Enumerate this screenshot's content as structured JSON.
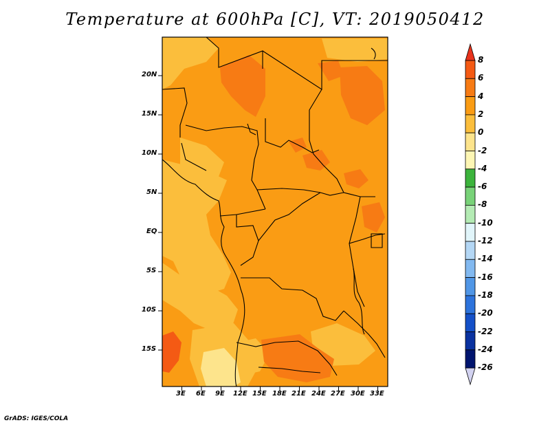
{
  "title": "Temperature at 600hPa [C], VT: 2019050412",
  "credit": "GrADS: IGES/COLA",
  "map": {
    "lon_ticks": [
      "3E",
      "6E",
      "9E",
      "12E",
      "15E",
      "18E",
      "21E",
      "24E",
      "27E",
      "30E",
      "33E"
    ],
    "lat_ticks": [
      "20N",
      "15N",
      "10N",
      "5N",
      "EQ",
      "5S",
      "10S",
      "15S"
    ]
  },
  "colorbar": {
    "labels": [
      "8",
      "6",
      "4",
      "2",
      "0",
      "-2",
      "-4",
      "-6",
      "-8",
      "-10",
      "-12",
      "-14",
      "-16",
      "-18",
      "-20",
      "-22",
      "-24",
      "-26"
    ],
    "colors": [
      "#e8331c",
      "#f45a14",
      "#f77b14",
      "#fa9c14",
      "#fbbe3c",
      "#fde48c",
      "#fdf6b4",
      "#3cb43c",
      "#78d278",
      "#b4ebb4",
      "#e1f5fa",
      "#b4d7f5",
      "#82b9f0",
      "#5096e6",
      "#2d73dc",
      "#1450c8",
      "#0a32a0",
      "#00146e",
      "#d2d2f0"
    ]
  }
}
